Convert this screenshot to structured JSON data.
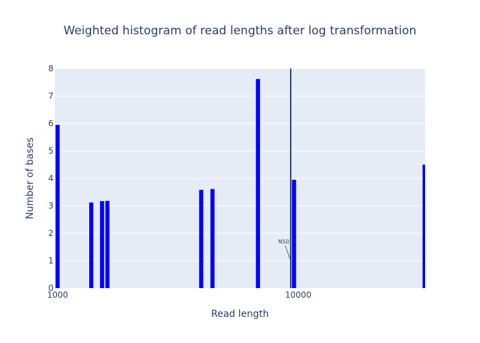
{
  "chart_data": {
    "type": "bar",
    "title": "Weighted histogram of read lengths after log transformation",
    "xlabel": "Read length",
    "ylabel": "Number of bases",
    "x_scale": "log",
    "xlim": [
      1000,
      32000
    ],
    "ylim": [
      0,
      8
    ],
    "y_ticks": [
      0,
      1,
      2,
      3,
      4,
      5,
      6,
      7,
      8
    ],
    "x_ticks": [
      {
        "value": 1000,
        "label": "1000"
      },
      {
        "value": 10000,
        "label": "10000"
      }
    ],
    "grid": true,
    "series": [
      {
        "name": "Number of bases",
        "color": "#0000ff",
        "x": [
          1000,
          1380,
          1530,
          1610,
          3950,
          4400,
          6800,
          9600,
          33500
        ],
        "values": [
          5.95,
          3.12,
          3.17,
          3.18,
          3.58,
          3.61,
          7.62,
          3.95,
          4.5
        ]
      }
    ],
    "vline": {
      "x": 9300,
      "color": "#2a3f5f"
    },
    "annotation": {
      "text": "N50",
      "x": 9300,
      "y": 1.0
    }
  }
}
